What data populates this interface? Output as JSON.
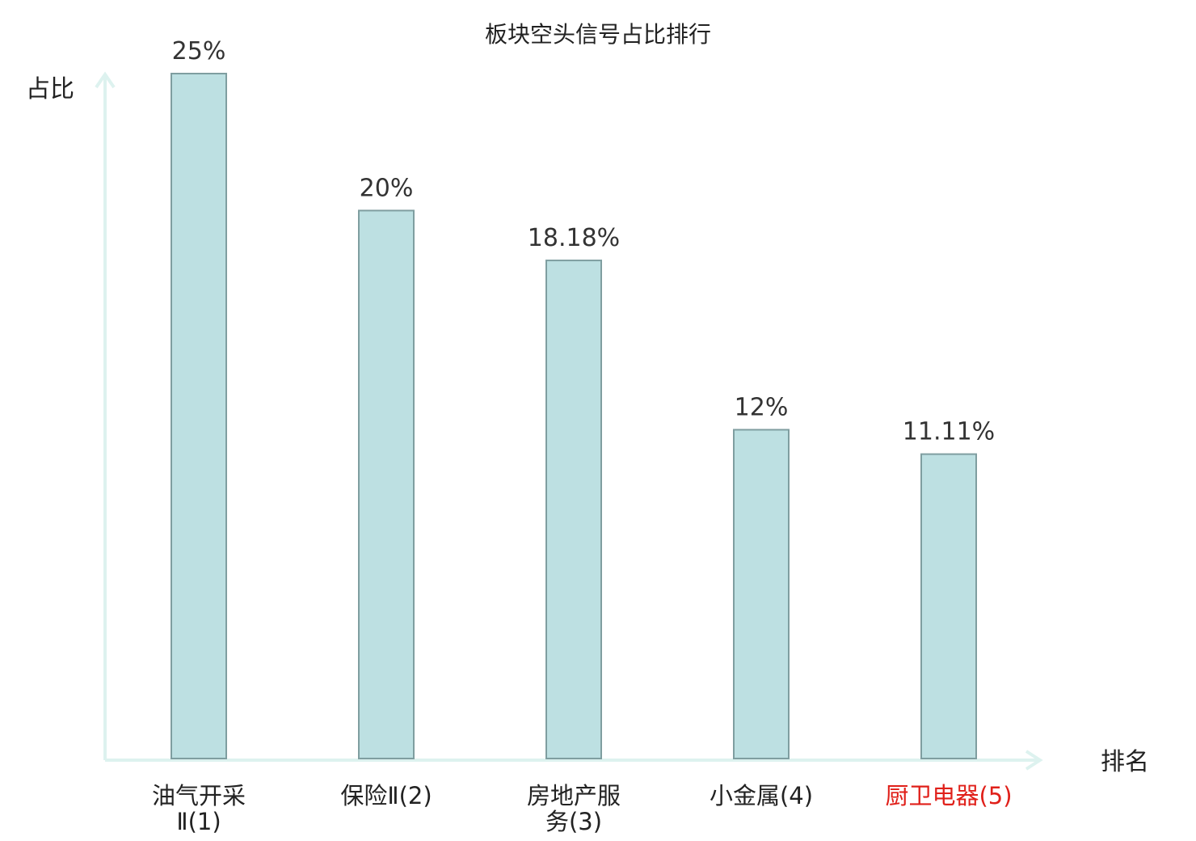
{
  "chart_data": {
    "type": "bar",
    "title": "板块空头信号占比排行",
    "xlabel": "排名",
    "ylabel": "占比",
    "categories": [
      [
        "油气开采",
        "Ⅱ(1)"
      ],
      [
        "保险Ⅱ(2)"
      ],
      [
        "房地产服",
        "务(3)"
      ],
      [
        "小金属(4)"
      ],
      [
        "厨卫电器(5)"
      ]
    ],
    "values": [
      25,
      20,
      18.18,
      12,
      11.11
    ],
    "value_labels": [
      "25%",
      "20%",
      "18.18%",
      "12%",
      "11.11%"
    ],
    "ylim": [
      0,
      25
    ],
    "grid": false,
    "highlighted_category_index": 4,
    "colors": {
      "bar_fill": "#bde0e2",
      "bar_stroke": "#7f9ea0",
      "axis": "#ddf2ef",
      "text": "#333333",
      "highlight": "#e0201a"
    }
  }
}
